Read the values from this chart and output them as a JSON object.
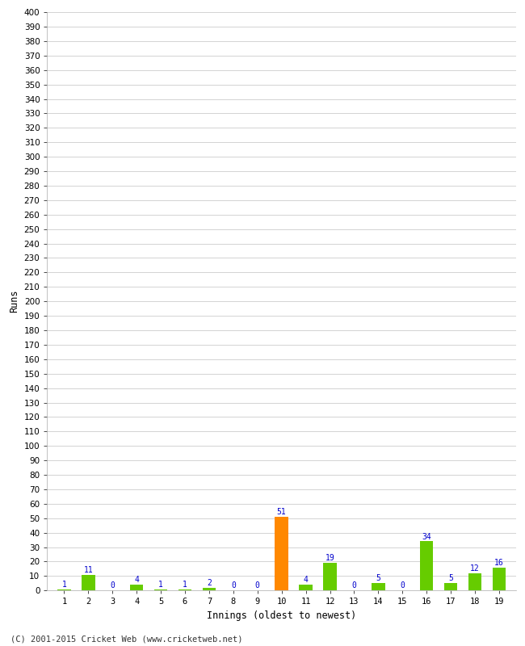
{
  "innings": [
    1,
    2,
    3,
    4,
    5,
    6,
    7,
    8,
    9,
    10,
    11,
    12,
    13,
    14,
    15,
    16,
    17,
    18,
    19
  ],
  "runs": [
    1,
    11,
    0,
    4,
    1,
    1,
    2,
    0,
    0,
    51,
    4,
    19,
    0,
    5,
    0,
    34,
    5,
    12,
    16
  ],
  "colors": [
    "#66cc00",
    "#66cc00",
    "#66cc00",
    "#66cc00",
    "#66cc00",
    "#66cc00",
    "#66cc00",
    "#66cc00",
    "#66cc00",
    "#ff8800",
    "#66cc00",
    "#66cc00",
    "#66cc00",
    "#66cc00",
    "#66cc00",
    "#66cc00",
    "#66cc00",
    "#66cc00",
    "#66cc00"
  ],
  "xlabel": "Innings (oldest to newest)",
  "ylabel": "Runs",
  "yticks": [
    0,
    10,
    20,
    30,
    40,
    50,
    60,
    70,
    80,
    90,
    100,
    110,
    120,
    130,
    140,
    150,
    160,
    170,
    180,
    190,
    200,
    210,
    220,
    230,
    240,
    250,
    260,
    270,
    280,
    290,
    300,
    310,
    320,
    330,
    340,
    350,
    360,
    370,
    380,
    390,
    400
  ],
  "ylim": [
    0,
    400
  ],
  "fig_background": "#ffffff",
  "plot_background": "#ffffff",
  "grid_color": "#cccccc",
  "label_color": "#0000cc",
  "tick_color": "#000000",
  "footer": "(C) 2001-2015 Cricket Web (www.cricketweb.net)",
  "bar_width": 0.55
}
